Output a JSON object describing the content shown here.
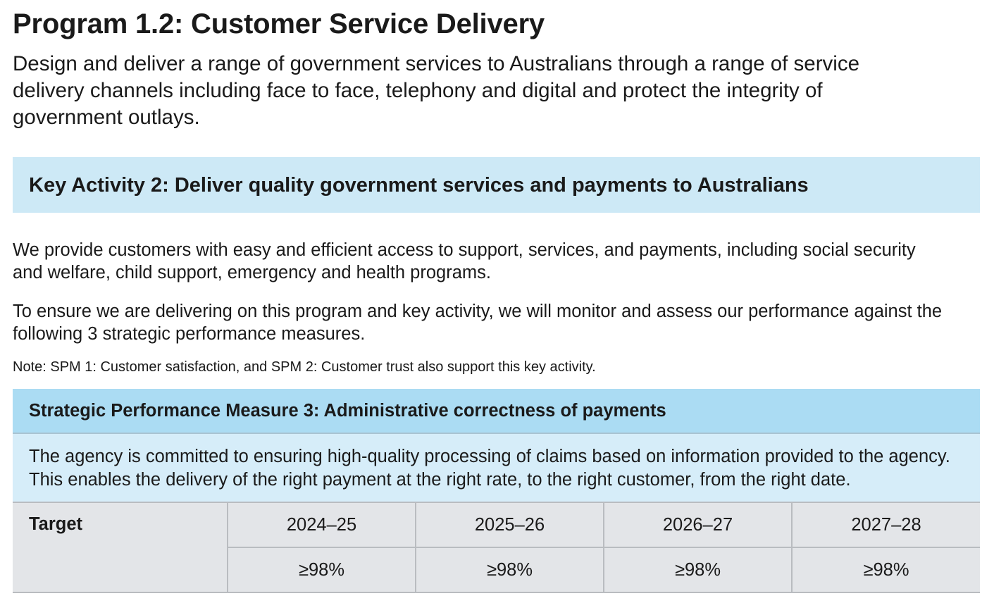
{
  "program": {
    "title": "Program 1.2: Customer Service Delivery",
    "description": "Design and deliver a range of government services to Australians through a range of service delivery channels including face to face, telephony and digital and protect the integrity of government outlays."
  },
  "key_activity": {
    "title": "Key Activity 2: Deliver quality government services and payments to Australians"
  },
  "paragraphs": [
    "We provide customers with easy and efficient access to support, services, and payments, including social security and welfare, child support, emergency and health programs.",
    "To ensure we are delivering on this program and key activity, we will monitor and assess our performance against the following 3 strategic performance measures."
  ],
  "note": "Note: SPM 1: Customer satisfaction, and SPM 2: Customer trust also support this key activity.",
  "spm": {
    "title": "Strategic Performance Measure 3: Administrative correctness of payments",
    "description": "The agency is committed to ensuring high-quality processing of claims based on information provided to the agency. This enables the delivery of the right payment at the right rate, to the right customer, from the right date.",
    "target_label": "Target",
    "years": [
      "2024–25",
      "2025–26",
      "2026–27",
      "2027–28"
    ],
    "values": [
      "≥98%",
      "≥98%",
      "≥98%",
      "≥98%"
    ]
  },
  "colors": {
    "key_activity_bg": "#cde9f6",
    "spm_header_bg": "#abdcf3",
    "spm_desc_bg": "#d6edf9",
    "table_bg": "#e3e5e8"
  }
}
